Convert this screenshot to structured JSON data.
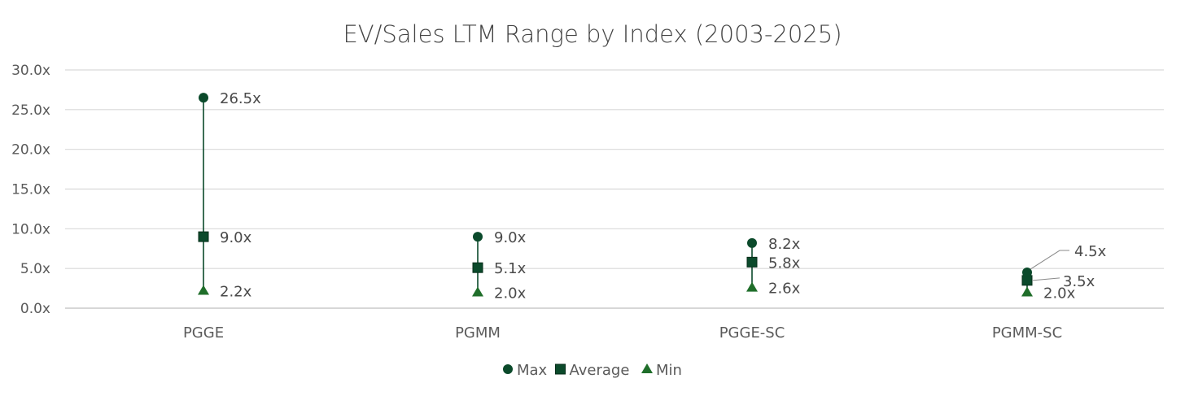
{
  "chart_data": {
    "type": "scatter",
    "title": "EV/Sales LTM Range by Index (2003-2025)",
    "xlabel": "",
    "ylabel": "",
    "categories": [
      "PGGE",
      "PGMM",
      "PGGE-SC",
      "PGMM-SC"
    ],
    "ylim": [
      0,
      30
    ],
    "yticks": [
      0,
      5,
      10,
      15,
      20,
      25,
      30
    ],
    "ytick_labels": [
      "0.0x",
      "5.0x",
      "10.0x",
      "15.0x",
      "20.0x",
      "25.0x",
      "30.0x"
    ],
    "grid": true,
    "legend_position": "bottom",
    "series": [
      {
        "name": "Max",
        "marker": "circle",
        "color": "#0b4a2b",
        "values": [
          26.5,
          9.0,
          8.2,
          4.5
        ],
        "labels": [
          "26.5x",
          "9.0x",
          "8.2x",
          "4.5x"
        ]
      },
      {
        "name": "Average",
        "marker": "square",
        "color": "#0b4a2b",
        "values": [
          9.0,
          5.1,
          5.8,
          3.5
        ],
        "labels": [
          "9.0x",
          "5.1x",
          "5.8x",
          "3.5x"
        ]
      },
      {
        "name": "Min",
        "marker": "triangle",
        "color": "#1f6e2a",
        "values": [
          2.2,
          2.0,
          2.6,
          2.0
        ],
        "labels": [
          "2.2x",
          "2.0x",
          "2.6x",
          "2.0x"
        ]
      }
    ],
    "colors": {
      "range_line": "#0b4a2b",
      "leader_line": "#8a8a8a"
    }
  }
}
